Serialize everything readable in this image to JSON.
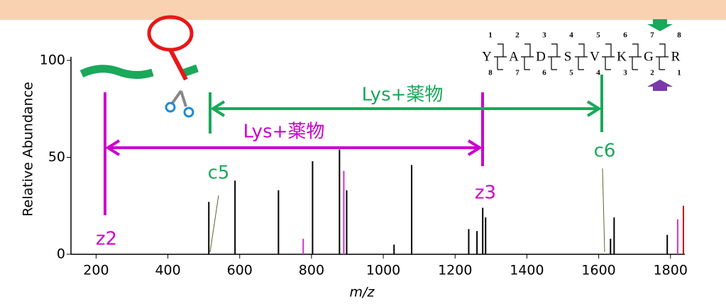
{
  "chart_data": {
    "type": "spectrum",
    "x_label": "m/z",
    "y_label": "Relative Abundance",
    "x": [
      514,
      587,
      708,
      777,
      803,
      878,
      890,
      898,
      1030,
      1079,
      1238,
      1261,
      1277,
      1285,
      1633,
      1643,
      1791,
      1820,
      1836
    ],
    "values": [
      27,
      38,
      33,
      8,
      48,
      54,
      43,
      33,
      5,
      46,
      13,
      12,
      24,
      19,
      8,
      19,
      10,
      18,
      25
    ],
    "colors": [
      "#000000",
      "#000000",
      "#000000",
      "#cc33cc",
      "#000000",
      "#000000",
      "#cc33cc",
      "#000000",
      "#000000",
      "#000000",
      "#000000",
      "#000000",
      "#000000",
      "#000000",
      "#000000",
      "#000000",
      "#000000",
      "#cc33cc",
      "#cc0000"
    ],
    "xlim": [
      130,
      1840
    ],
    "ylim": [
      0,
      100
    ],
    "xticks": [
      200,
      400,
      600,
      800,
      1000,
      1200,
      1400,
      1600,
      1800
    ],
    "yticks": [
      0,
      50,
      100
    ],
    "annotations": [
      "z2",
      "c5",
      "z3",
      "c6",
      "Lys+薬物",
      "Lys+薬物"
    ]
  },
  "sequence": {
    "residues": [
      "Y",
      "A",
      "D",
      "S",
      "V",
      "K",
      "G",
      "R"
    ],
    "c_numbers": [
      1,
      2,
      3,
      4,
      5,
      6,
      7,
      8
    ],
    "z_numbers": [
      8,
      7,
      6,
      5,
      4,
      3,
      2,
      1
    ]
  }
}
